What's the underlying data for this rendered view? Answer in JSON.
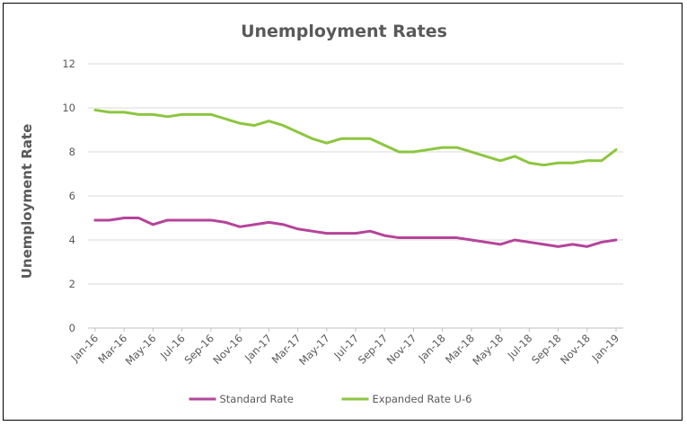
{
  "chart_data": {
    "type": "line",
    "title": "Unemployment Rates",
    "xlabel": "",
    "ylabel": "Unemployment Rate",
    "ylim": [
      0,
      12
    ],
    "yticks": [
      0,
      2,
      4,
      6,
      8,
      10,
      12
    ],
    "grid": true,
    "legend_position": "bottom",
    "x": [
      "Jan-16",
      "Feb-16",
      "Mar-16",
      "Apr-16",
      "May-16",
      "Jun-16",
      "Jul-16",
      "Aug-16",
      "Sep-16",
      "Oct-16",
      "Nov-16",
      "Dec-16",
      "Jan-17",
      "Feb-17",
      "Mar-17",
      "Apr-17",
      "May-17",
      "Jun-17",
      "Jul-17",
      "Aug-17",
      "Sep-17",
      "Oct-17",
      "Nov-17",
      "Dec-17",
      "Jan-18",
      "Feb-18",
      "Mar-18",
      "Apr-18",
      "May-18",
      "Jun-18",
      "Jul-18",
      "Aug-18",
      "Sep-18",
      "Oct-18",
      "Nov-18",
      "Dec-18",
      "Jan-19"
    ],
    "xtick_labels": [
      "Jan-16",
      "Mar-16",
      "May-16",
      "Jul-16",
      "Sep-16",
      "Nov-16",
      "Jan-17",
      "Mar-17",
      "May-17",
      "Jul-17",
      "Sep-17",
      "Nov-17",
      "Jan-18",
      "Mar-18",
      "May-18",
      "Jul-18",
      "Sep-18",
      "Nov-18",
      "Jan-19"
    ],
    "series": [
      {
        "name": "Standard Rate",
        "color": "#B5449A",
        "values": [
          4.9,
          4.9,
          5.0,
          5.0,
          4.7,
          4.9,
          4.9,
          4.9,
          4.9,
          4.8,
          4.6,
          4.7,
          4.8,
          4.7,
          4.5,
          4.4,
          4.3,
          4.3,
          4.3,
          4.4,
          4.2,
          4.1,
          4.1,
          4.1,
          4.1,
          4.1,
          4.0,
          3.9,
          3.8,
          4.0,
          3.9,
          3.8,
          3.7,
          3.8,
          3.7,
          3.9,
          4.0
        ]
      },
      {
        "name": "Expanded Rate U-6",
        "color": "#8CC63F",
        "values": [
          9.9,
          9.8,
          9.8,
          9.7,
          9.7,
          9.6,
          9.7,
          9.7,
          9.7,
          9.5,
          9.3,
          9.2,
          9.4,
          9.2,
          8.9,
          8.6,
          8.4,
          8.6,
          8.6,
          8.6,
          8.3,
          8.0,
          8.0,
          8.1,
          8.2,
          8.2,
          8.0,
          7.8,
          7.6,
          7.8,
          7.5,
          7.4,
          7.5,
          7.5,
          7.6,
          7.6,
          8.1
        ]
      }
    ]
  }
}
